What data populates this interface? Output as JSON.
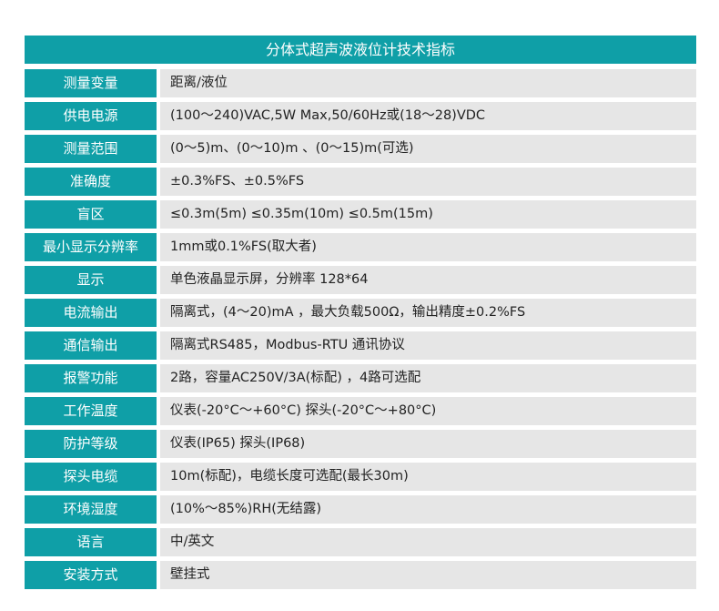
{
  "title": "分体式超声波液位计技术指标",
  "colors": {
    "header": "#0f9fa7",
    "value_bg": "#e6e6e6"
  },
  "rows": [
    {
      "key": "测量变量",
      "value": "距离/液位"
    },
    {
      "key": "供电电源",
      "value": "(100～240)VAC,5W Max,50/60Hz或(18～28)VDC"
    },
    {
      "key": "测量范围",
      "value": "(0～5)m、(0～10)m 、(0～15)m(可选)"
    },
    {
      "key": "准确度",
      "value": "±0.3%FS、±0.5%FS"
    },
    {
      "key": "盲区",
      "value": "≤0.3m(5m) ≤0.35m(10m) ≤0.5m(15m)"
    },
    {
      "key": "最小显示分辨率",
      "value": "1mm或0.1%FS(取大者)"
    },
    {
      "key": "显示",
      "value": "单色液晶显示屏，分辨率 128*64"
    },
    {
      "key": "电流输出",
      "value": "隔离式，(4～20)mA ，最大负载500Ω，输出精度±0.2%FS"
    },
    {
      "key": "通信输出",
      "value": "隔离式RS485，Modbus-RTU 通讯协议"
    },
    {
      "key": "报警功能",
      "value": "2路，容量AC250V/3A(标配) ，4路可选配"
    },
    {
      "key": "工作温度",
      "value": "仪表(-20°C～+60°C) 探头(-20°C～+80°C)"
    },
    {
      "key": "防护等级",
      "value": "仪表(IP65) 探头(IP68)"
    },
    {
      "key": "探头电缆",
      "value": "10m(标配)，电缆长度可选配(最长30m)"
    },
    {
      "key": "环境湿度",
      "value": "(10%～85%)RH(无结露)"
    },
    {
      "key": "语言",
      "value": "中/英文"
    },
    {
      "key": "安装方式",
      "value": "壁挂式"
    }
  ]
}
